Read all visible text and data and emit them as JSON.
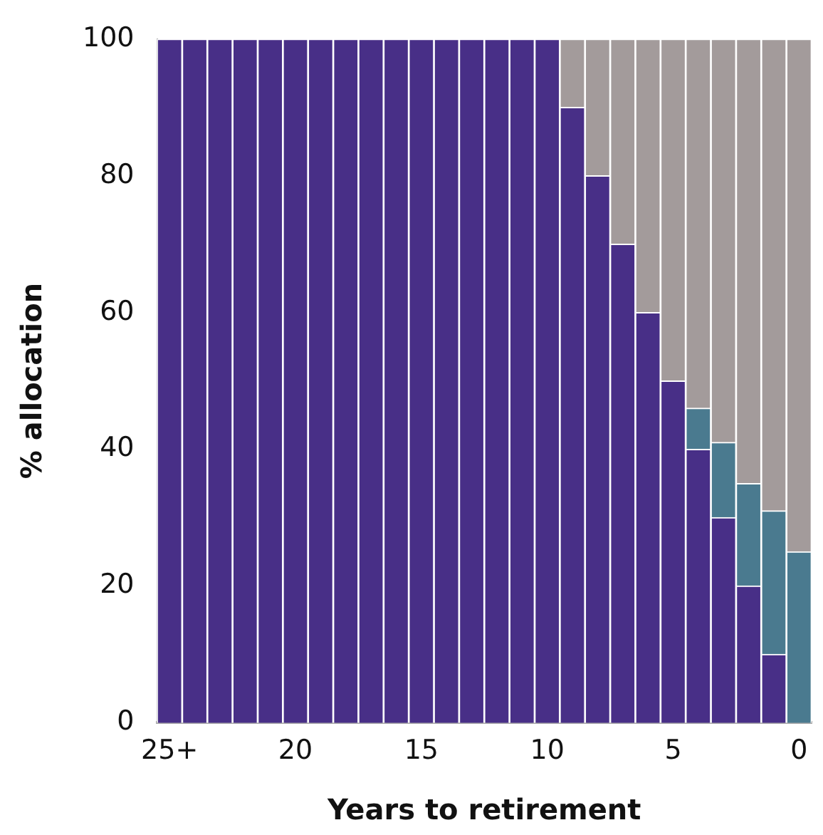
{
  "chart_data": {
    "type": "bar",
    "stacked": true,
    "xlabel": "Years to retirement",
    "ylabel": "% allocation",
    "categories": [
      "25+",
      null,
      null,
      null,
      null,
      "20",
      null,
      null,
      null,
      null,
      "15",
      null,
      null,
      null,
      null,
      "10",
      null,
      null,
      null,
      null,
      "5",
      null,
      null,
      null,
      null,
      "0"
    ],
    "series": [
      {
        "color": "#482f87",
        "values": [
          100,
          100,
          100,
          100,
          100,
          100,
          100,
          100,
          100,
          100,
          100,
          100,
          100,
          100,
          100,
          100,
          90,
          80,
          70,
          60,
          50,
          40,
          30,
          20,
          10,
          0
        ]
      },
      {
        "color": "#4a7a8f",
        "values": [
          0,
          0,
          0,
          0,
          0,
          0,
          0,
          0,
          0,
          0,
          0,
          0,
          0,
          0,
          0,
          0,
          0,
          0,
          0,
          0,
          0,
          6,
          11,
          15,
          21,
          25
        ]
      },
      {
        "color": "#a39b9b",
        "values": [
          0,
          0,
          0,
          0,
          0,
          0,
          0,
          0,
          0,
          0,
          0,
          0,
          0,
          0,
          0,
          0,
          10,
          20,
          30,
          40,
          50,
          54,
          59,
          65,
          69,
          75
        ]
      }
    ],
    "ylim": [
      0,
      100
    ],
    "yticks": [
      0,
      20,
      40,
      60,
      80,
      100
    ],
    "grid": false,
    "legend": false
  }
}
